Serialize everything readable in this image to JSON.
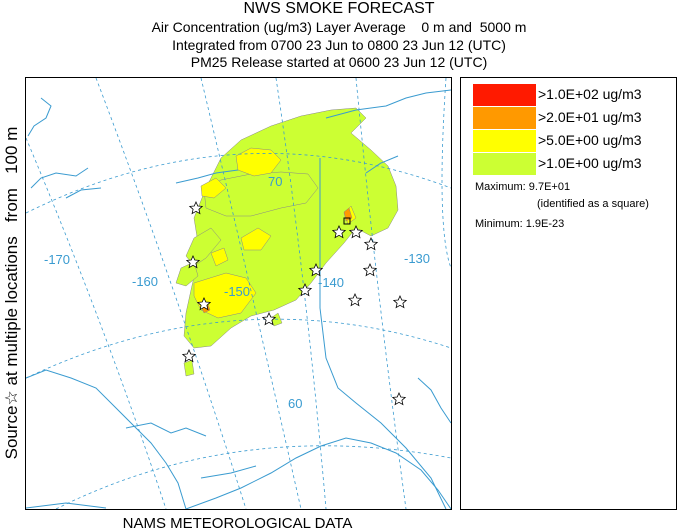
{
  "title": {
    "line1": "NWS SMOKE FORECAST",
    "line2": "Air Concentration (ug/m3) Layer Average    0 m and  5000 m",
    "line3": "Integrated from 0700 23 Jun to 0800 23 Jun 12 (UTC)",
    "line4": "PM25 Release started at 0600 23 Jun 12 (UTC)"
  },
  "side_label": "Source☆ at multiple locations   from   100 m",
  "footer": "NAMS METEOROLOGICAL DATA",
  "map": {
    "longitude_labels": [
      "-170",
      "-160",
      "-150",
      "-140",
      "-130"
    ],
    "latitude_labels": [
      "70",
      "60"
    ],
    "colors": {
      "graticule": "#3a9bd0",
      "coastline": "#3a9bd0",
      "border": "#3a9bd0"
    }
  },
  "legend": {
    "items": [
      {
        "label": ">1.0E+02 ug/m3",
        "color": "#ff1a00"
      },
      {
        "label": ">2.0E+01 ug/m3",
        "color": "#ff9900"
      },
      {
        "label": ">5.0E+00 ug/m3",
        "color": "#ffff00"
      },
      {
        "label": ">1.0E+00 ug/m3",
        "color": "#ccff33"
      }
    ],
    "maximum_label": "Maximum: 9.7E+01",
    "maximum_note": "(identified as a square)",
    "minimum_label": "Minimum: 1.9E-23"
  }
}
